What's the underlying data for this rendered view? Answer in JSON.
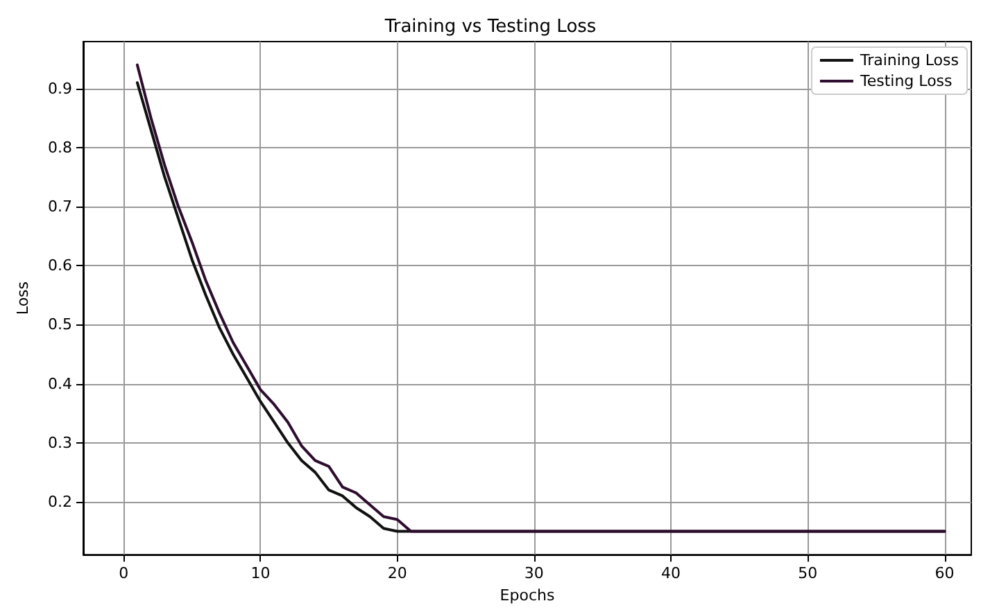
{
  "chart_data": {
    "type": "line",
    "title": "Training vs Testing Loss",
    "xlabel": "Epochs",
    "ylabel": "Loss",
    "x": [
      1,
      2,
      3,
      4,
      5,
      6,
      7,
      8,
      9,
      10,
      11,
      12,
      13,
      14,
      15,
      16,
      17,
      18,
      19,
      20,
      21,
      22,
      23,
      24,
      25,
      26,
      27,
      28,
      29,
      30,
      31,
      32,
      33,
      34,
      35,
      36,
      37,
      38,
      39,
      40,
      41,
      42,
      43,
      44,
      45,
      46,
      47,
      48,
      49,
      50,
      51,
      52,
      53,
      54,
      55,
      56,
      57,
      58,
      59,
      60
    ],
    "series": [
      {
        "name": "Training Loss",
        "color": "#111111",
        "values": [
          0.91,
          0.83,
          0.75,
          0.68,
          0.61,
          0.55,
          0.495,
          0.45,
          0.41,
          0.37,
          0.335,
          0.3,
          0.27,
          0.25,
          0.22,
          0.21,
          0.19,
          0.175,
          0.155,
          0.15,
          0.15,
          0.15,
          0.15,
          0.15,
          0.15,
          0.15,
          0.15,
          0.15,
          0.15,
          0.15,
          0.15,
          0.15,
          0.15,
          0.15,
          0.15,
          0.15,
          0.15,
          0.15,
          0.15,
          0.15,
          0.15,
          0.15,
          0.15,
          0.15,
          0.15,
          0.15,
          0.15,
          0.15,
          0.15,
          0.15,
          0.15,
          0.15,
          0.15,
          0.15,
          0.15,
          0.15,
          0.15,
          0.15,
          0.15,
          0.15
        ]
      },
      {
        "name": "Testing Loss",
        "color": "#2e0d2e",
        "values": [
          0.94,
          0.85,
          0.77,
          0.7,
          0.64,
          0.575,
          0.52,
          0.47,
          0.43,
          0.39,
          0.365,
          0.335,
          0.295,
          0.27,
          0.26,
          0.225,
          0.215,
          0.195,
          0.175,
          0.17,
          0.15,
          0.15,
          0.15,
          0.15,
          0.15,
          0.15,
          0.15,
          0.15,
          0.15,
          0.15,
          0.15,
          0.15,
          0.15,
          0.15,
          0.15,
          0.15,
          0.15,
          0.15,
          0.15,
          0.15,
          0.15,
          0.15,
          0.15,
          0.15,
          0.15,
          0.15,
          0.15,
          0.15,
          0.15,
          0.15,
          0.15,
          0.15,
          0.15,
          0.15,
          0.15,
          0.15,
          0.15,
          0.15,
          0.15,
          0.15
        ]
      }
    ],
    "xlim": [
      -2.95,
      61.95
    ],
    "xticks": [
      0,
      10,
      20,
      30,
      40,
      50,
      60
    ],
    "ylim": [
      0.1105,
      0.9795
    ],
    "yticks": [
      0.2,
      0.3,
      0.4,
      0.5,
      0.6,
      0.7,
      0.8,
      0.9
    ],
    "grid": true,
    "legend": "top right",
    "marker": "none",
    "line_style": "solid"
  }
}
